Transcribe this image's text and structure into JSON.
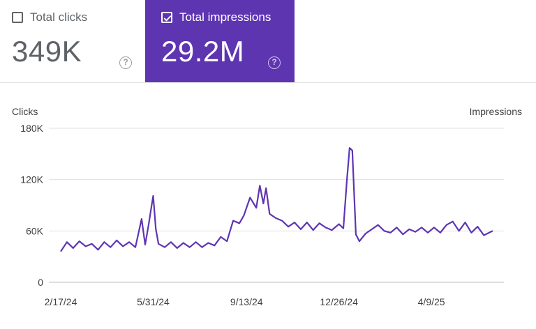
{
  "colors": {
    "accent": "#5e35b1",
    "series": "#5e35b1",
    "grid": "#e0e0e0"
  },
  "metrics": {
    "clicks": {
      "label": "Total clicks",
      "value": "349K",
      "checked": false,
      "help_icon": "help-circle-icon"
    },
    "impressions": {
      "label": "Total impressions",
      "value": "29.2M",
      "checked": true,
      "help_icon": "help-circle-icon"
    }
  },
  "chart": {
    "left_axis_title": "Clicks",
    "right_axis_title": "Impressions"
  },
  "chart_data": {
    "type": "line",
    "ylabel_left": "Clicks",
    "ylabel_right": "Impressions",
    "ylim": [
      0,
      180000
    ],
    "y_ticks": [
      {
        "value": 0,
        "label": "0"
      },
      {
        "value": 60000,
        "label": "60K"
      },
      {
        "value": 120000,
        "label": "120K"
      },
      {
        "value": 180000,
        "label": "180K"
      }
    ],
    "x_start": "2024-02-17",
    "x_end": "2025-06-17",
    "x_ticks": [
      {
        "date": "2024-02-17",
        "label": "2/17/24"
      },
      {
        "date": "2024-05-31",
        "label": "5/31/24"
      },
      {
        "date": "2024-09-13",
        "label": "9/13/24"
      },
      {
        "date": "2024-12-26",
        "label": "12/26/24"
      },
      {
        "date": "2025-04-09",
        "label": "4/9/25"
      }
    ],
    "series": [
      {
        "visible": "impressions",
        "points": [
          [
            "2024-02-17",
            36000
          ],
          [
            "2024-02-24",
            47000
          ],
          [
            "2024-03-02",
            40000
          ],
          [
            "2024-03-09",
            48000
          ],
          [
            "2024-03-16",
            42000
          ],
          [
            "2024-03-23",
            45000
          ],
          [
            "2024-03-30",
            38000
          ],
          [
            "2024-04-06",
            47000
          ],
          [
            "2024-04-13",
            41000
          ],
          [
            "2024-04-20",
            49000
          ],
          [
            "2024-04-27",
            42000
          ],
          [
            "2024-05-04",
            47000
          ],
          [
            "2024-05-11",
            41000
          ],
          [
            "2024-05-18",
            74000
          ],
          [
            "2024-05-22",
            44000
          ],
          [
            "2024-05-26",
            68000
          ],
          [
            "2024-05-29",
            88000
          ],
          [
            "2024-05-31",
            101000
          ],
          [
            "2024-06-03",
            62000
          ],
          [
            "2024-06-06",
            45000
          ],
          [
            "2024-06-13",
            41000
          ],
          [
            "2024-06-20",
            47000
          ],
          [
            "2024-06-27",
            40000
          ],
          [
            "2024-07-04",
            46000
          ],
          [
            "2024-07-11",
            41000
          ],
          [
            "2024-07-18",
            47000
          ],
          [
            "2024-07-25",
            41000
          ],
          [
            "2024-08-01",
            46000
          ],
          [
            "2024-08-08",
            43000
          ],
          [
            "2024-08-15",
            53000
          ],
          [
            "2024-08-22",
            48000
          ],
          [
            "2024-08-29",
            72000
          ],
          [
            "2024-09-05",
            69000
          ],
          [
            "2024-09-10",
            78000
          ],
          [
            "2024-09-17",
            99000
          ],
          [
            "2024-09-24",
            87000
          ],
          [
            "2024-09-28",
            113000
          ],
          [
            "2024-10-02",
            92000
          ],
          [
            "2024-10-05",
            110000
          ],
          [
            "2024-10-09",
            80000
          ],
          [
            "2024-10-16",
            75000
          ],
          [
            "2024-10-23",
            72000
          ],
          [
            "2024-10-30",
            65000
          ],
          [
            "2024-11-06",
            70000
          ],
          [
            "2024-11-13",
            62000
          ],
          [
            "2024-11-20",
            70000
          ],
          [
            "2024-11-27",
            61000
          ],
          [
            "2024-12-04",
            69000
          ],
          [
            "2024-12-11",
            64000
          ],
          [
            "2024-12-18",
            61000
          ],
          [
            "2024-12-26",
            68000
          ],
          [
            "2024-12-31",
            63000
          ],
          [
            "2025-01-04",
            120000
          ],
          [
            "2025-01-07",
            157000
          ],
          [
            "2025-01-10",
            154000
          ],
          [
            "2025-01-14",
            56000
          ],
          [
            "2025-01-18",
            48000
          ],
          [
            "2025-01-25",
            57000
          ],
          [
            "2025-02-01",
            62000
          ],
          [
            "2025-02-08",
            67000
          ],
          [
            "2025-02-15",
            60000
          ],
          [
            "2025-02-22",
            58000
          ],
          [
            "2025-03-01",
            64000
          ],
          [
            "2025-03-08",
            56000
          ],
          [
            "2025-03-15",
            62000
          ],
          [
            "2025-03-22",
            59000
          ],
          [
            "2025-03-29",
            64000
          ],
          [
            "2025-04-05",
            58000
          ],
          [
            "2025-04-12",
            64000
          ],
          [
            "2025-04-19",
            58000
          ],
          [
            "2025-04-26",
            67000
          ],
          [
            "2025-05-03",
            71000
          ],
          [
            "2025-05-10",
            60000
          ],
          [
            "2025-05-17",
            70000
          ],
          [
            "2025-05-24",
            58000
          ],
          [
            "2025-05-31",
            65000
          ],
          [
            "2025-06-07",
            55000
          ],
          [
            "2025-06-17",
            60000
          ]
        ]
      }
    ]
  }
}
